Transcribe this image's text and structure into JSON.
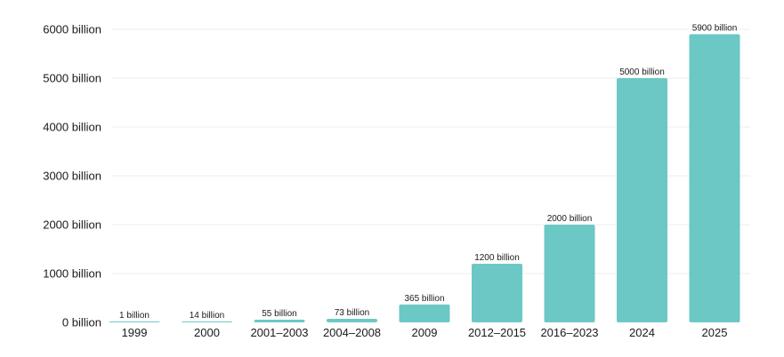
{
  "chart_data": {
    "type": "bar",
    "title": "",
    "xlabel": "",
    "ylabel": "",
    "categories": [
      "1999",
      "2000",
      "2001–2003",
      "2004–2008",
      "2009",
      "2012–2015",
      "2016–2023",
      "2024",
      "2025"
    ],
    "values": [
      1,
      14,
      55,
      73,
      365,
      1200,
      2000,
      5000,
      5900
    ],
    "data_labels": [
      "1 billion",
      "14 billion",
      "55 billion",
      "73 billion",
      "365 billion",
      "1200 billion",
      "2000 billion",
      "5000 billion",
      "5900 billion"
    ],
    "yticks": [
      0,
      1000,
      2000,
      3000,
      4000,
      5000,
      6000
    ],
    "ytick_labels": [
      "0 billion",
      "1000 billion",
      "2000 billion",
      "3000 billion",
      "4000 billion",
      "5000 billion",
      "6000 billion"
    ],
    "ylim": [
      0,
      6000
    ],
    "grid": true,
    "legend": "none",
    "bar_color": "#6cc8c4"
  }
}
